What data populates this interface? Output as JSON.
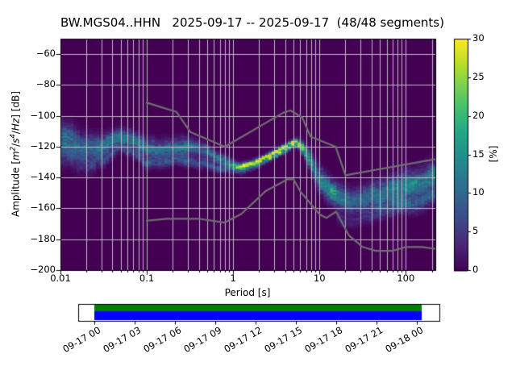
{
  "title": "BW.MGS04..HHN   2025-09-17 -- 2025-09-17  (48/48 segments)",
  "chart_data": {
    "type": "heatmap",
    "subtype": "ppsd-probability-histogram",
    "xlabel": "Period [s]",
    "ylabel": {
      "prefix": "Amplitude [",
      "m": "m",
      "m_exp": "2",
      "slash1": "/",
      "s": "s",
      "s_exp": "4",
      "slash2": "/",
      "hz": "Hz",
      "suffix": "] [dB]"
    },
    "x_axis": {
      "scale": "log",
      "min": 0.01,
      "max": 220,
      "tick_values": [
        0.01,
        0.1,
        1,
        10,
        100
      ],
      "tick_labels": [
        "0.01",
        "0.1",
        "1",
        "10",
        "100"
      ]
    },
    "y_axis": {
      "min": -200,
      "max": -50,
      "tick_values": [
        -60,
        -80,
        -100,
        -120,
        -140,
        -160,
        -180,
        -200
      ],
      "tick_labels": [
        "−60",
        "−80",
        "−100",
        "−120",
        "−140",
        "−160",
        "−180",
        "−200"
      ]
    },
    "colorbar": {
      "label": "[%]",
      "min": 0,
      "max": 30,
      "tick_values": [
        0,
        5,
        10,
        15,
        20,
        25,
        30
      ],
      "tick_labels": [
        "0",
        "5",
        "10",
        "15",
        "20",
        "25",
        "30"
      ],
      "colormap": "viridis"
    },
    "background_color": "#440154",
    "grid_color": "#cccccc",
    "ridge": [
      [
        0.01,
        -116.0,
        10.0,
        9
      ],
      [
        0.014,
        -119.0,
        10.0,
        8
      ],
      [
        0.02,
        -122.0,
        9.0,
        8
      ],
      [
        0.03,
        -119.5,
        7.0,
        10
      ],
      [
        0.04,
        -115.5,
        5.5,
        12
      ],
      [
        0.05,
        -113.5,
        5.0,
        13
      ],
      [
        0.07,
        -116.5,
        5.0,
        11
      ],
      [
        0.1,
        -122.5,
        5.5,
        12
      ],
      [
        0.14,
        -124.0,
        5.5,
        11
      ],
      [
        0.2,
        -123.0,
        5.0,
        12
      ],
      [
        0.3,
        -121.5,
        5.0,
        14
      ],
      [
        0.45,
        -124.0,
        4.5,
        13
      ],
      [
        0.65,
        -128.5,
        3.5,
        15
      ],
      [
        0.9,
        -132.0,
        2.8,
        18
      ],
      [
        1.2,
        -133.8,
        2.4,
        26
      ],
      [
        1.7,
        -131.5,
        2.2,
        28
      ],
      [
        2.5,
        -127.0,
        2.0,
        29
      ],
      [
        3.5,
        -122.5,
        1.9,
        30
      ],
      [
        4.5,
        -119.0,
        1.9,
        30
      ],
      [
        5.2,
        -117.0,
        2.0,
        30
      ],
      [
        6.0,
        -118.5,
        2.6,
        26
      ],
      [
        7.0,
        -124.0,
        4.0,
        16
      ],
      [
        8.0,
        -130.5,
        6.0,
        11
      ],
      [
        9.0,
        -137.0,
        7.0,
        10
      ],
      [
        11.0,
        -144.0,
        7.0,
        13
      ],
      [
        14.0,
        -150.0,
        7.0,
        14
      ],
      [
        18.0,
        -154.0,
        8.0,
        11
      ],
      [
        23.0,
        -156.0,
        8.0,
        9
      ],
      [
        30.0,
        -154.5,
        8.0,
        9
      ],
      [
        40.0,
        -152.5,
        8.0,
        10
      ],
      [
        55.0,
        -150.0,
        8.5,
        11
      ],
      [
        75.0,
        -147.5,
        8.5,
        11
      ],
      [
        100.0,
        -145.0,
        8.5,
        12
      ],
      [
        140.0,
        -142.0,
        8.5,
        11
      ],
      [
        200.0,
        -138.0,
        8.5,
        10
      ]
    ],
    "noise_models": {
      "color": "#6f6f6f",
      "nhnm": [
        [
          0.1,
          -91.5
        ],
        [
          0.22,
          -97.4
        ],
        [
          0.32,
          -110.5
        ],
        [
          0.8,
          -120.0
        ],
        [
          3.8,
          -98.0
        ],
        [
          4.6,
          -96.5
        ],
        [
          6.3,
          -101.0
        ],
        [
          7.9,
          -113.5
        ],
        [
          15.4,
          -120.0
        ],
        [
          20.0,
          -138.5
        ],
        [
          354.8,
          -126.0
        ]
      ],
      "nlnm": [
        [
          0.1,
          -168.0
        ],
        [
          0.17,
          -166.7
        ],
        [
          0.4,
          -166.7
        ],
        [
          0.8,
          -169.2
        ],
        [
          1.24,
          -163.7
        ],
        [
          2.4,
          -148.6
        ],
        [
          4.3,
          -141.1
        ],
        [
          5.0,
          -141.1
        ],
        [
          6.0,
          -149.0
        ],
        [
          10.0,
          -163.8
        ],
        [
          12.0,
          -166.2
        ],
        [
          15.6,
          -162.1
        ],
        [
          21.9,
          -177.5
        ],
        [
          31.6,
          -185.0
        ],
        [
          45.0,
          -187.5
        ],
        [
          70.0,
          -187.5
        ],
        [
          101.0,
          -185.0
        ],
        [
          154.0,
          -185.0
        ],
        [
          328.0,
          -187.5
        ]
      ]
    },
    "timeline": {
      "tick_labels": [
        "09-17 00",
        "09-17 03",
        "09-17 06",
        "09-17 09",
        "09-17 12",
        "09-17 15",
        "09-17 18",
        "09-17 21",
        "09-18 00"
      ],
      "coverage_top_color": "#008000",
      "coverage_bottom_color": "#0000ff",
      "coverage_start_frac": 0.0446,
      "coverage_end_frac": 0.951
    }
  }
}
